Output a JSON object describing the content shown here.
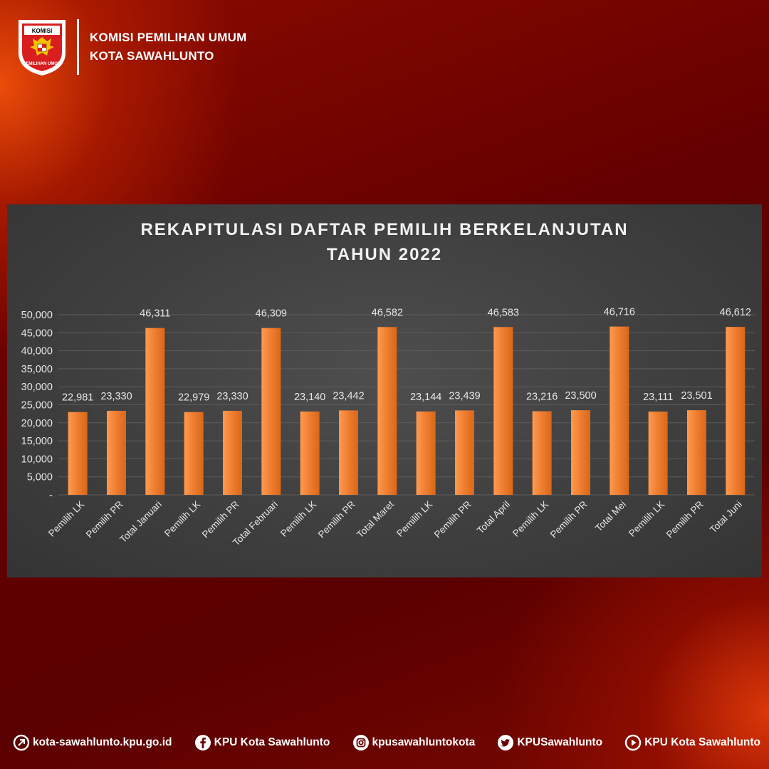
{
  "header": {
    "org_line1": "KOMISI PEMILIHAN UMUM",
    "org_line2": "KOTA SAWAHLUNTO",
    "logo_text_top": "KOMISI",
    "logo_text_bottom": "PEMILIHAN UMUM"
  },
  "chart_data": {
    "type": "bar",
    "title_line1": "REKAPITULASI DAFTAR PEMILIH BERKELANJUTAN",
    "title_line2": "TAHUN 2022",
    "categories": [
      "Pemilih LK",
      "Pemilih PR",
      "Total Januari",
      "Pemilih LK",
      "Pemilih PR",
      "Total Februari",
      "Pemilih LK",
      "Pemilih PR",
      "Total Maret",
      "Pemilih LK",
      "Pemilih PR",
      "Total April",
      "Pemilih LK",
      "Pemilih PR",
      "Total Mei",
      "Pemilih LK",
      "Pemilih PR",
      "Total Juni"
    ],
    "values": [
      22981,
      23330,
      46311,
      22979,
      23330,
      46309,
      23140,
      23442,
      46582,
      23144,
      23439,
      46583,
      23216,
      23500,
      46716,
      23111,
      23501,
      46612
    ],
    "value_labels": [
      "22,981",
      "23,330",
      "46,311",
      "22,979",
      "23,330",
      "46,309",
      "23,140",
      "23,442",
      "46,582",
      "23,144",
      "23,439",
      "46,583",
      "23,216",
      "23,500",
      "46,716",
      "23,111",
      "23,501",
      "46,612"
    ],
    "y_ticks": [
      0,
      5000,
      10000,
      15000,
      20000,
      25000,
      30000,
      35000,
      40000,
      45000,
      50000
    ],
    "y_tick_labels": [
      "-",
      "5,000",
      "10,000",
      "15,000",
      "20,000",
      "25,000",
      "30,000",
      "35,000",
      "40,000",
      "45,000",
      "50,000"
    ],
    "ylim": [
      0,
      50000
    ],
    "grid": true,
    "legend": "none",
    "bar_color": "#ee7d30"
  },
  "footer": {
    "website": "kota-sawahlunto.kpu.go.id",
    "facebook": "KPU Kota Sawahlunto",
    "instagram": "kpusawahluntokota",
    "twitter": "KPUSawahlunto",
    "youtube": "KPU Kota Sawahlunto",
    "icons": [
      "globe-icon",
      "facebook-icon",
      "instagram-icon",
      "twitter-icon",
      "youtube-icon"
    ]
  }
}
